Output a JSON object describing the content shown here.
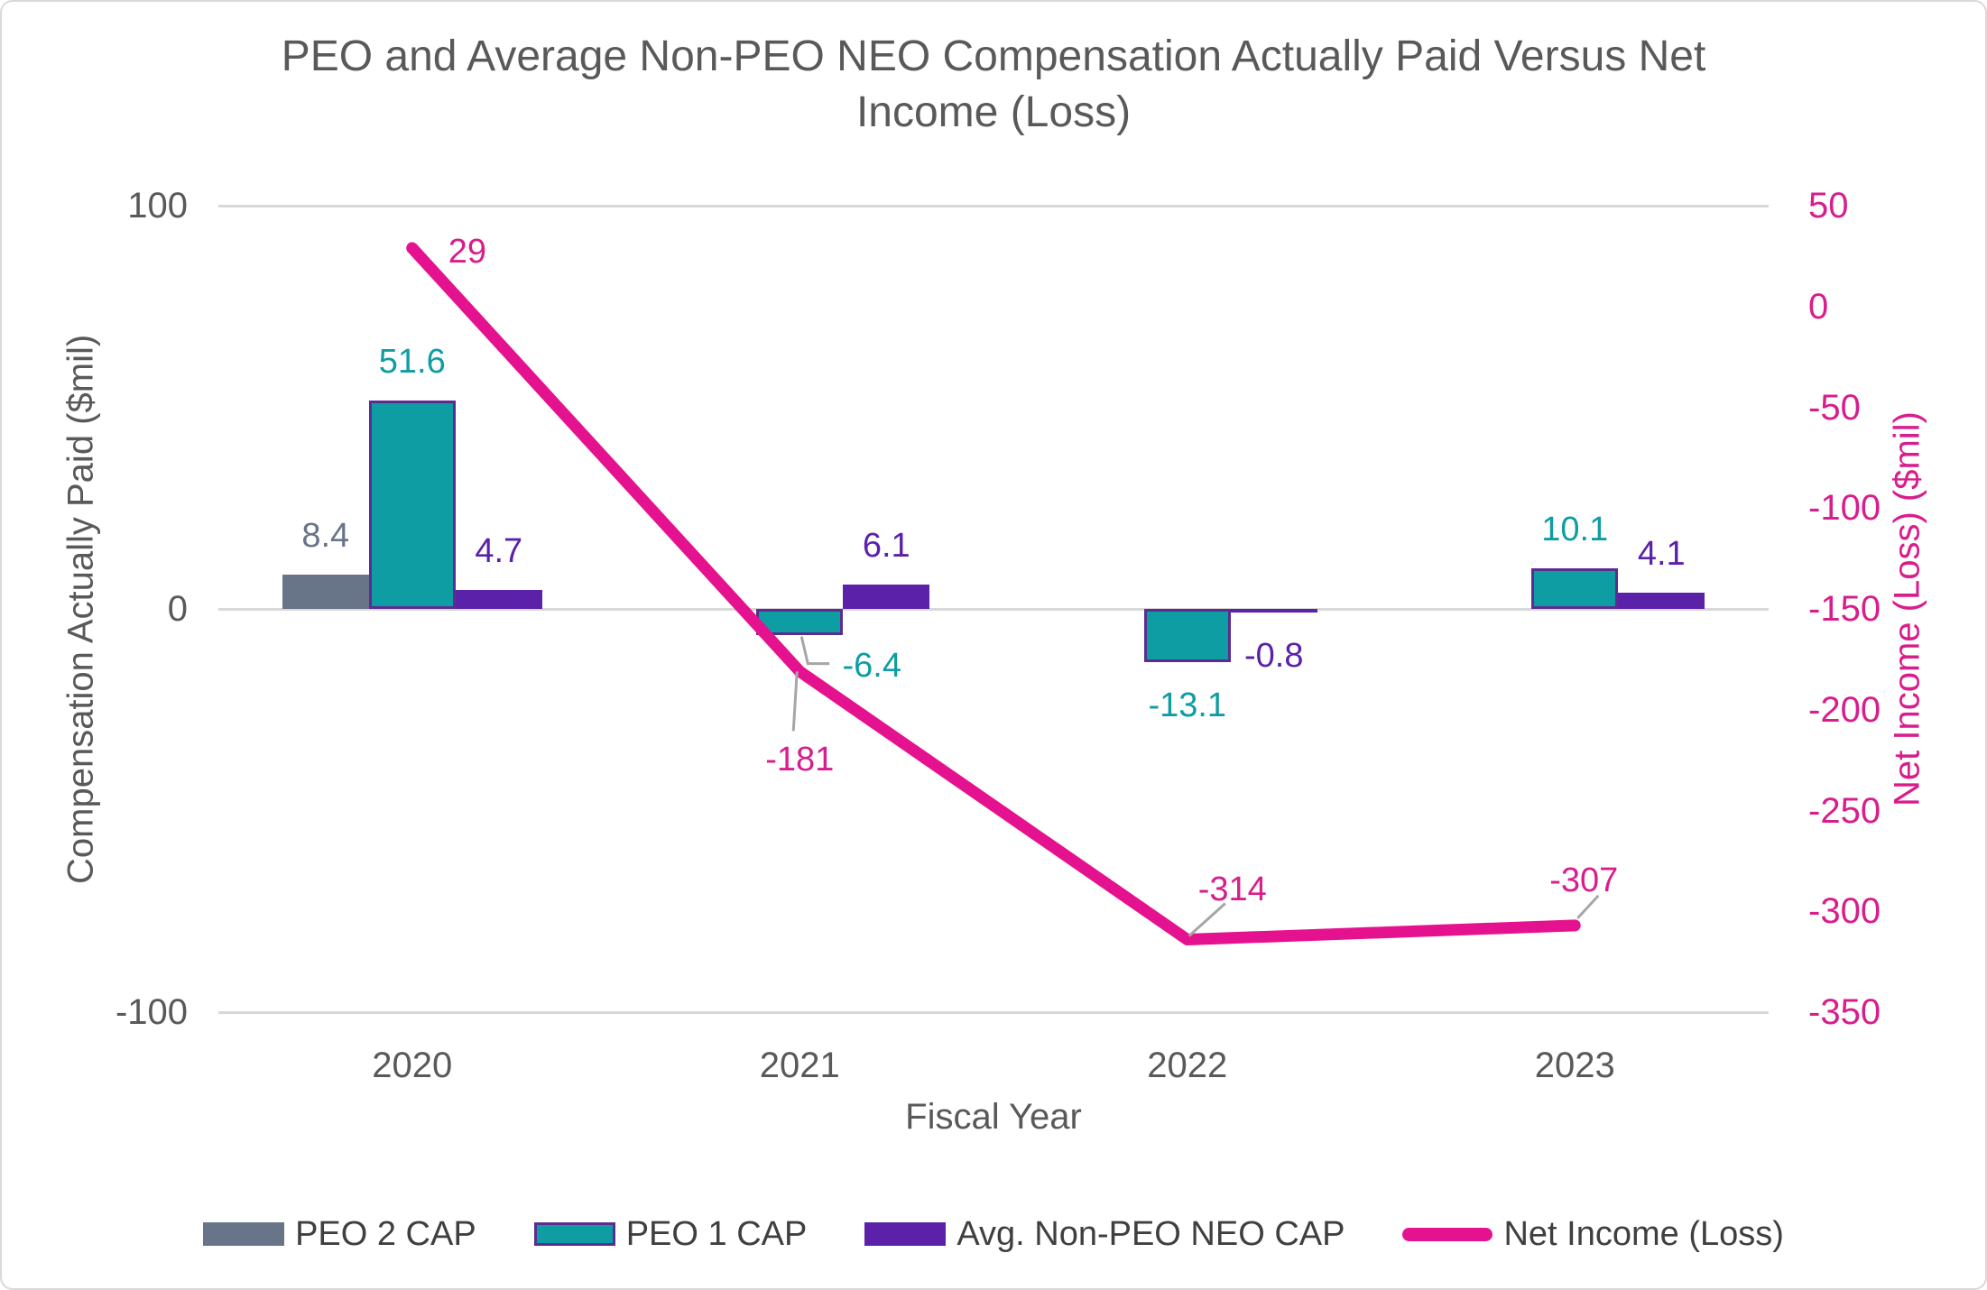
{
  "title": {
    "line1": "PEO and Average Non-PEO NEO Compensation Actually Paid Versus Net",
    "line2": "Income (Loss)",
    "color": "#595959"
  },
  "chart_data": {
    "type": "combo-bar-line",
    "categories": [
      "2020",
      "2021",
      "2022",
      "2023"
    ],
    "x_axis": {
      "title": "Fiscal Year",
      "text_color": "#595959"
    },
    "left_axis": {
      "title": "Compensation Actually Paid ($mil)",
      "min": -100,
      "max": 100,
      "ticks": [
        100,
        0,
        -100
      ],
      "text_color": "#595959"
    },
    "right_axis": {
      "title": "Net Income (Loss) ($mil)",
      "min": -350,
      "max": 50,
      "ticks": [
        50,
        0,
        -50,
        -100,
        -150,
        -200,
        -250,
        -300,
        -350
      ],
      "text_color": "#D81D8D"
    },
    "gridlines": {
      "values": [
        100,
        0,
        -100
      ],
      "color": "#D8D8D8"
    },
    "series": [
      {
        "name": "PEO 2 CAP",
        "type": "bar",
        "axis": "left",
        "color": "#687488",
        "values": [
          8.4,
          null,
          null,
          null
        ],
        "label_placements": [
          "above",
          null,
          null,
          null
        ]
      },
      {
        "name": "PEO 1 CAP",
        "type": "bar",
        "axis": "left",
        "color": "#0E9DA2",
        "border_color": "#5C2D91",
        "values": [
          51.6,
          -6.4,
          -13.1,
          10.1
        ],
        "label_placements": [
          "above",
          "elbow",
          "below",
          "above"
        ]
      },
      {
        "name": "Avg. Non-PEO NEO CAP",
        "type": "bar",
        "axis": "left",
        "color": "#5B21A8",
        "values": [
          4.7,
          6.1,
          -0.8,
          4.1
        ],
        "label_placements": [
          "above",
          "above",
          "below",
          "above"
        ]
      },
      {
        "name": "Net Income (Loss)",
        "type": "line",
        "axis": "right",
        "color": "#E5128F",
        "values": [
          29,
          -181,
          -314,
          -307
        ],
        "label_placements": [
          "right",
          "below-callout",
          "above-callout",
          "above-callout-short"
        ]
      }
    ],
    "callout_color": "#A6A6A6",
    "legend_text_color": "#3F3F3F",
    "legend_position": "bottom"
  }
}
